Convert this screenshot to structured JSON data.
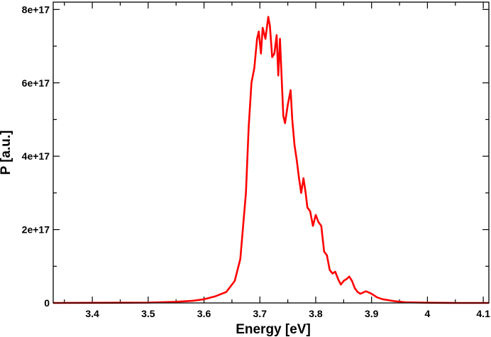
{
  "chart_data": {
    "type": "line",
    "title": "",
    "xlabel": "Energy [eV]",
    "ylabel": "P [a.u.]",
    "xlim": [
      3.33,
      4.11
    ],
    "ylim": [
      0,
      8.2e+17
    ],
    "grid": false,
    "legend": "none",
    "x_ticks": [
      3.4,
      3.5,
      3.6,
      3.7,
      3.8,
      3.9,
      4.0,
      4.1
    ],
    "x_tick_labels": [
      "3.4",
      "3.5",
      "3.6",
      "3.7",
      "3.8",
      "3.9",
      "4",
      "4.1"
    ],
    "y_ticks": [
      0,
      2e+17,
      4e+17,
      6e+17,
      8e+17
    ],
    "y_tick_labels": [
      "0",
      "2e+17",
      "4e+17",
      "6e+17",
      "8e+17"
    ],
    "series": [
      {
        "color": "#ff0000",
        "x": [
          3.33,
          3.45,
          3.5,
          3.55,
          3.58,
          3.6,
          3.62,
          3.64,
          3.655,
          3.665,
          3.675,
          3.68,
          3.685,
          3.69,
          3.695,
          3.698,
          3.702,
          3.705,
          3.71,
          3.715,
          3.718,
          3.722,
          3.726,
          3.73,
          3.733,
          3.736,
          3.74,
          3.742,
          3.745,
          3.75,
          3.755,
          3.758,
          3.762,
          3.766,
          3.77,
          3.774,
          3.778,
          3.782,
          3.785,
          3.79,
          3.795,
          3.8,
          3.805,
          3.81,
          3.815,
          3.82,
          3.825,
          3.83,
          3.835,
          3.84,
          3.845,
          3.85,
          3.855,
          3.86,
          3.865,
          3.87,
          3.875,
          3.88,
          3.89,
          3.9,
          3.91,
          3.92,
          3.94,
          3.96,
          4.0,
          4.05,
          4.11
        ],
        "y": [
          0,
          500000000000000.0,
          1000000000000000.0,
          3000000000000000.0,
          6000000000000000.0,
          1e+16,
          1.8e+16,
          3e+16,
          6e+16,
          1.2e+17,
          3e+17,
          4.8e+17,
          6e+17,
          6.4e+17,
          7.2e+17,
          7.4e+17,
          6.8e+17,
          7.5e+17,
          7.2e+17,
          7.8e+17,
          7.55e+17,
          6.7e+17,
          6.8e+17,
          7.3e+17,
          6.2e+17,
          7.2e+17,
          5.8e+17,
          5.1e+17,
          4.9e+17,
          5.4e+17,
          5.8e+17,
          5e+17,
          4.3e+17,
          3.9e+17,
          3.4e+17,
          3e+17,
          3.4e+17,
          3e+17,
          2.6e+17,
          2.5e+17,
          2.1e+17,
          2.4e+17,
          2.2e+17,
          2.1e+17,
          1.4e+17,
          1.3e+17,
          9e+16,
          8e+16,
          8.5e+16,
          6.5e+16,
          5e+16,
          6e+16,
          6.5e+16,
          7.2e+16,
          6e+16,
          4e+16,
          3e+16,
          2.5e+16,
          3.2e+16,
          2.5e+16,
          1.5e+16,
          1e+16,
          5000000000000000.0,
          2000000000000000.0,
          500000000000000.0,
          0,
          0
        ]
      }
    ]
  }
}
